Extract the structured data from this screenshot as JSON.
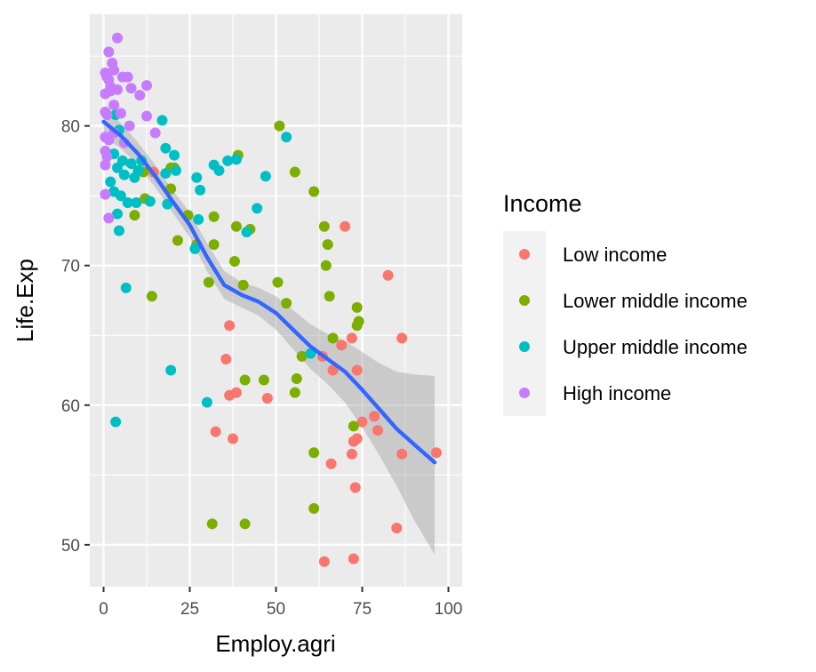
{
  "chart_data": {
    "type": "scatter",
    "xlabel": "Employ.agri",
    "ylabel": "Life.Exp",
    "xlim": [
      -4,
      104
    ],
    "ylim": [
      47,
      88
    ],
    "x_ticks": [
      0,
      25,
      50,
      75,
      100
    ],
    "y_ticks": [
      50,
      60,
      70,
      80
    ],
    "x_tick_labels": [
      "0",
      "25",
      "50",
      "75",
      "100"
    ],
    "y_tick_labels": [
      "50",
      "60",
      "70",
      "80"
    ],
    "grid": true,
    "legend_position": "right",
    "legend_title": "Income",
    "series": [
      {
        "name": "Low income",
        "color": "#F8766D",
        "points": [
          [
            14.5,
            76.7
          ],
          [
            36.5,
            65.7
          ],
          [
            35.5,
            63.3
          ],
          [
            36.5,
            60.7
          ],
          [
            38.5,
            60.9
          ],
          [
            32.5,
            58.1
          ],
          [
            37.5,
            57.6
          ],
          [
            47.5,
            60.5
          ],
          [
            63.5,
            63.5
          ],
          [
            66.5,
            62.5
          ],
          [
            69.0,
            64.3
          ],
          [
            70.0,
            72.8
          ],
          [
            72.0,
            64.8
          ],
          [
            73.5,
            62.5
          ],
          [
            75.0,
            58.8
          ],
          [
            78.5,
            59.2
          ],
          [
            79.5,
            58.2
          ],
          [
            72.5,
            57.4
          ],
          [
            73.5,
            57.6
          ],
          [
            72.0,
            56.5
          ],
          [
            66.0,
            55.8
          ],
          [
            73.0,
            54.1
          ],
          [
            82.5,
            69.3
          ],
          [
            86.5,
            64.8
          ],
          [
            86.5,
            56.5
          ],
          [
            96.5,
            56.6
          ],
          [
            85.0,
            51.2
          ],
          [
            64.0,
            48.8
          ],
          [
            72.5,
            49.0
          ]
        ]
      },
      {
        "name": "Lower middle income",
        "color": "#7CAE00",
        "points": [
          [
            51.0,
            80.0
          ],
          [
            55.5,
            76.7
          ],
          [
            61.0,
            75.3
          ],
          [
            64.0,
            72.8
          ],
          [
            65.0,
            71.5
          ],
          [
            64.5,
            70.0
          ],
          [
            65.5,
            67.8
          ],
          [
            73.5,
            67.0
          ],
          [
            74.0,
            66.0
          ],
          [
            73.5,
            65.7
          ],
          [
            66.5,
            64.8
          ],
          [
            72.5,
            58.5
          ],
          [
            39.0,
            77.9
          ],
          [
            19.5,
            77.0
          ],
          [
            20.5,
            77.0
          ],
          [
            19.5,
            75.5
          ],
          [
            24.5,
            73.6
          ],
          [
            32.0,
            73.5
          ],
          [
            38.5,
            72.8
          ],
          [
            42.5,
            72.6
          ],
          [
            32.0,
            71.5
          ],
          [
            21.5,
            71.8
          ],
          [
            27.0,
            71.5
          ],
          [
            38.0,
            70.3
          ],
          [
            40.5,
            68.6
          ],
          [
            30.5,
            68.8
          ],
          [
            50.5,
            68.8
          ],
          [
            53.0,
            67.3
          ],
          [
            14.0,
            67.8
          ],
          [
            9.0,
            73.6
          ],
          [
            12.0,
            74.8
          ],
          [
            11.5,
            76.7
          ],
          [
            57.5,
            63.5
          ],
          [
            56.0,
            61.9
          ],
          [
            55.5,
            60.9
          ],
          [
            41.0,
            61.8
          ],
          [
            46.5,
            61.8
          ],
          [
            61.0,
            56.6
          ],
          [
            61.0,
            52.6
          ],
          [
            31.5,
            51.5
          ],
          [
            41.0,
            51.5
          ]
        ]
      },
      {
        "name": "Upper middle income",
        "color": "#00BFC4",
        "points": [
          [
            17.0,
            80.4
          ],
          [
            53.0,
            79.2
          ],
          [
            18.0,
            78.4
          ],
          [
            20.5,
            77.9
          ],
          [
            32.0,
            77.2
          ],
          [
            36.0,
            77.5
          ],
          [
            38.5,
            77.6
          ],
          [
            33.5,
            76.8
          ],
          [
            18.0,
            76.6
          ],
          [
            21.0,
            76.8
          ],
          [
            27.0,
            76.3
          ],
          [
            47.0,
            76.4
          ],
          [
            28.0,
            75.4
          ],
          [
            5.5,
            77.5
          ],
          [
            8.0,
            77.3
          ],
          [
            11.0,
            77.5
          ],
          [
            4.0,
            77.0
          ],
          [
            6.0,
            76.5
          ],
          [
            9.0,
            76.3
          ],
          [
            10.0,
            76.8
          ],
          [
            3.0,
            78.0
          ],
          [
            4.5,
            79.7
          ],
          [
            3.5,
            80.8
          ],
          [
            2.0,
            76.0
          ],
          [
            3.0,
            75.3
          ],
          [
            5.0,
            75.0
          ],
          [
            7.0,
            74.5
          ],
          [
            13.5,
            74.6
          ],
          [
            18.5,
            74.4
          ],
          [
            9.5,
            74.5
          ],
          [
            4.0,
            73.7
          ],
          [
            27.5,
            73.3
          ],
          [
            44.5,
            74.1
          ],
          [
            41.5,
            72.4
          ],
          [
            4.5,
            72.5
          ],
          [
            26.5,
            71.2
          ],
          [
            6.5,
            68.4
          ],
          [
            60.0,
            63.7
          ],
          [
            19.5,
            62.5
          ],
          [
            30.0,
            60.2
          ],
          [
            3.5,
            58.8
          ]
        ]
      },
      {
        "name": "High income",
        "color": "#C77CFF",
        "points": [
          [
            4.0,
            86.3
          ],
          [
            1.5,
            85.3
          ],
          [
            2.5,
            84.5
          ],
          [
            3.0,
            84.0
          ],
          [
            0.5,
            83.8
          ],
          [
            1.0,
            83.5
          ],
          [
            1.5,
            83.3
          ],
          [
            2.0,
            82.8
          ],
          [
            4.0,
            82.6
          ],
          [
            5.5,
            83.5
          ],
          [
            7.0,
            83.5
          ],
          [
            0.5,
            82.3
          ],
          [
            2.0,
            82.5
          ],
          [
            3.0,
            81.5
          ],
          [
            8.0,
            82.7
          ],
          [
            10.5,
            82.2
          ],
          [
            12.5,
            82.9
          ],
          [
            0.5,
            81.0
          ],
          [
            1.0,
            80.8
          ],
          [
            5.0,
            80.9
          ],
          [
            12.5,
            80.7
          ],
          [
            7.5,
            80.0
          ],
          [
            15.0,
            79.5
          ],
          [
            0.5,
            79.2
          ],
          [
            1.5,
            79.0
          ],
          [
            3.0,
            79.5
          ],
          [
            0.5,
            78.2
          ],
          [
            1.0,
            77.8
          ],
          [
            0.5,
            77.2
          ],
          [
            6.0,
            78.8
          ],
          [
            0.5,
            75.1
          ],
          [
            1.5,
            73.4
          ]
        ]
      }
    ],
    "smooth": {
      "color": "#3366FF",
      "x": [
        0,
        5,
        10,
        15,
        20,
        25,
        30,
        35,
        40,
        45,
        50,
        55,
        60,
        65,
        70,
        75,
        80,
        85,
        90,
        96
      ],
      "y": [
        80.3,
        79.3,
        78.0,
        76.4,
        74.6,
        72.9,
        70.6,
        68.6,
        67.9,
        67.4,
        66.6,
        65.4,
        64.2,
        63.3,
        62.4,
        61.1,
        59.7,
        58.3,
        57.2,
        55.9
      ],
      "se_lower": [
        79.2,
        78.4,
        77.2,
        75.6,
        73.8,
        72.0,
        69.6,
        67.6,
        67.0,
        66.4,
        65.4,
        64.0,
        62.6,
        61.5,
        60.2,
        58.4,
        56.4,
        54.2,
        51.8,
        49.3
      ],
      "se_upper": [
        81.4,
        80.2,
        78.8,
        77.2,
        75.4,
        73.8,
        71.6,
        69.6,
        68.8,
        68.4,
        67.8,
        66.8,
        65.8,
        65.1,
        64.6,
        63.8,
        63.0,
        62.4,
        62.2,
        62.1
      ]
    }
  }
}
